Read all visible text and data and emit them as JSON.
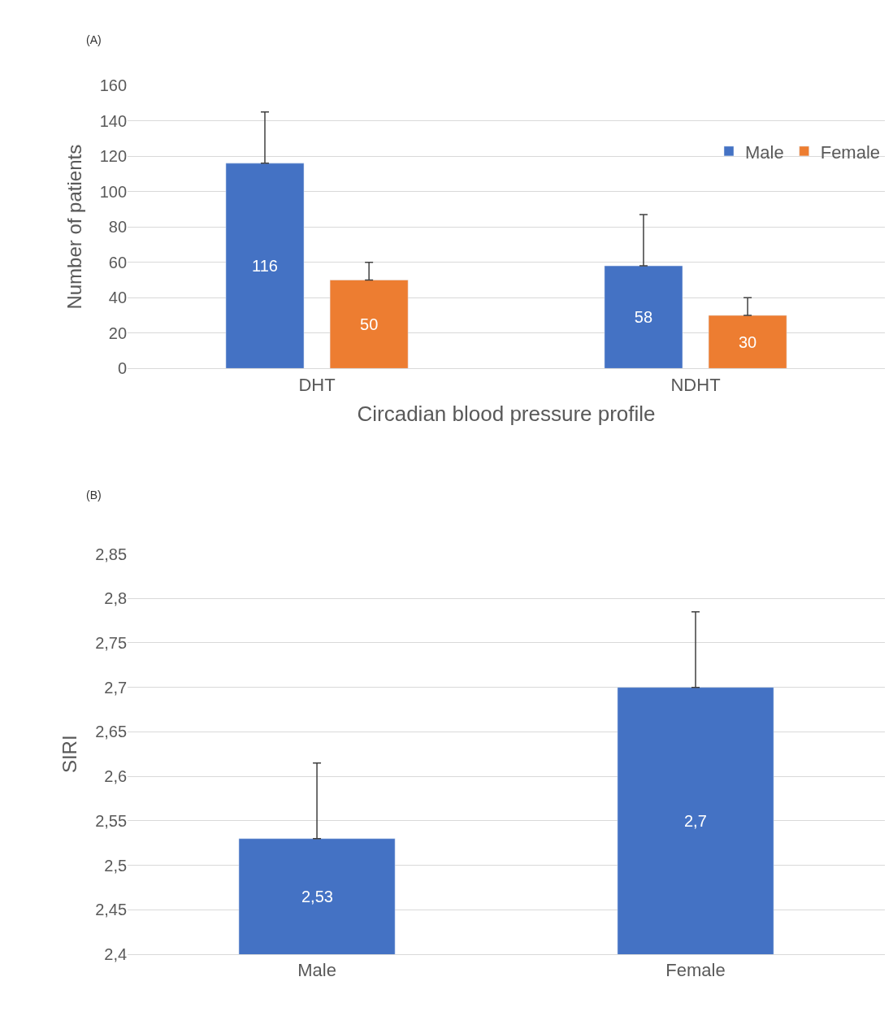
{
  "chart_data": [
    {
      "type": "bar",
      "title": "(A)",
      "xlabel": "Circadian blood pressure profile",
      "ylabel": "Number of patients",
      "categories": [
        "DHT",
        "NDHT"
      ],
      "series": [
        {
          "name": "Male",
          "color": "#4472c4",
          "values": [
            116,
            58
          ],
          "errors": [
            [
              116,
              145
            ],
            [
              58,
              87
            ]
          ]
        },
        {
          "name": "Female",
          "color": "#ed7d31",
          "values": [
            50,
            30
          ],
          "errors": [
            [
              50,
              60
            ],
            [
              30,
              40
            ]
          ]
        }
      ],
      "ylim": [
        0,
        160
      ],
      "yticks": [
        0,
        20,
        40,
        60,
        80,
        100,
        120,
        140,
        160
      ],
      "grid": "y",
      "legend": "top right",
      "data_labels": true
    },
    {
      "type": "bar",
      "title": "(B)",
      "ylabel": "SIRI",
      "categories": [
        "Male",
        "Female"
      ],
      "series": [
        {
          "color": "#4472c4",
          "values": [
            2.53,
            2.7
          ],
          "errors": [
            [
              2.53,
              2.615
            ],
            [
              2.7,
              2.785
            ]
          ],
          "value_labels": [
            "2,53",
            "2,7"
          ]
        }
      ],
      "ylim": [
        2.4,
        2.85
      ],
      "yticks": [
        {
          "value": 2.4,
          "label": "2,4"
        },
        {
          "value": 2.45,
          "label": "2,45"
        },
        {
          "value": 2.5,
          "label": "2,5"
        },
        {
          "value": 2.55,
          "label": "2,55"
        },
        {
          "value": 2.6,
          "label": "2,6"
        },
        {
          "value": 2.65,
          "label": "2,65"
        },
        {
          "value": 2.7,
          "label": "2,7"
        },
        {
          "value": 2.75,
          "label": "2,75"
        },
        {
          "value": 2.8,
          "label": "2,8"
        },
        {
          "value": 2.85,
          "label": "2,85"
        }
      ],
      "grid": "y"
    }
  ]
}
